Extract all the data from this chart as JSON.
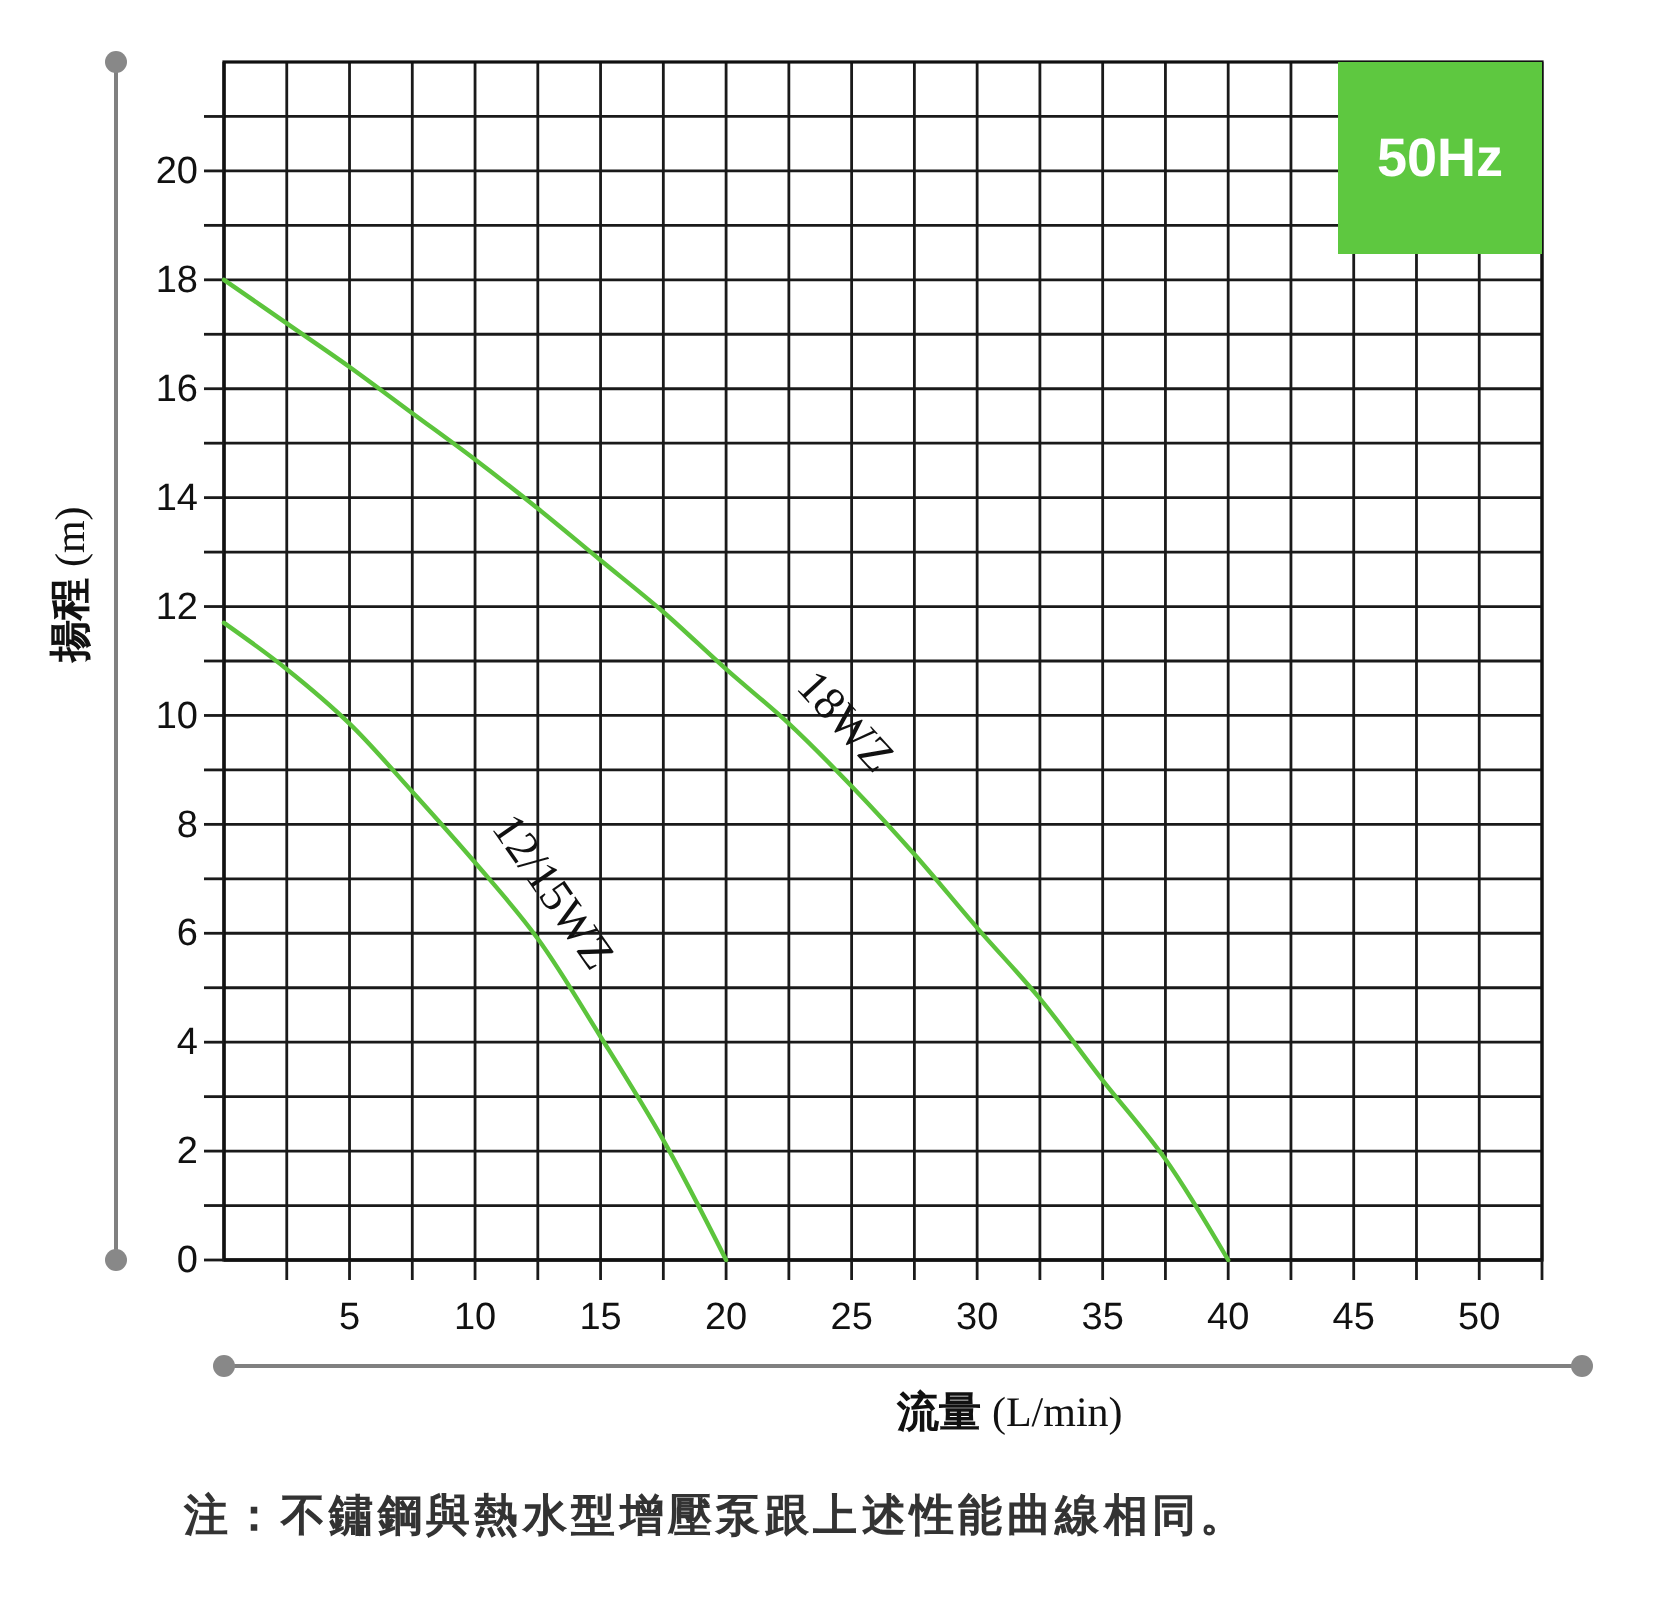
{
  "chart_data": {
    "type": "line",
    "xlabel": "流量 (L/min)",
    "ylabel": "揚程 (m)",
    "xlim": [
      0,
      52.5
    ],
    "ylim": [
      0,
      22
    ],
    "xticks": [
      {
        "value": 2.5,
        "label": null
      },
      5,
      {
        "value": 7.5,
        "label": null
      },
      10,
      {
        "value": 12.5,
        "label": null
      },
      15,
      {
        "value": 17.5,
        "label": null
      },
      20,
      {
        "value": 22.5,
        "label": null
      },
      25,
      {
        "value": 27.5,
        "label": null
      },
      30,
      {
        "value": 32.5,
        "label": null
      },
      35,
      {
        "value": 37.5,
        "label": null
      },
      40,
      {
        "value": 42.5,
        "label": null
      },
      45,
      {
        "value": 47.5,
        "label": null
      },
      50,
      {
        "value": 52.5,
        "label": null
      }
    ],
    "yticks": [
      0,
      {
        "value": 1,
        "label": null
      },
      2,
      {
        "value": 3,
        "label": null
      },
      4,
      {
        "value": 5,
        "label": null
      },
      6,
      {
        "value": 7,
        "label": null
      },
      8,
      {
        "value": 9,
        "label": null
      },
      10,
      {
        "value": 11,
        "label": null
      },
      12,
      {
        "value": 13,
        "label": null
      },
      14,
      {
        "value": 15,
        "label": null
      },
      16,
      {
        "value": 17,
        "label": null
      },
      18,
      {
        "value": 19,
        "label": null
      },
      20,
      {
        "value": 21,
        "label": null
      }
    ],
    "grid": true,
    "series": [
      {
        "name": "18WZ",
        "color": "#5cc43c",
        "x": [
          0,
          2.5,
          5,
          7.5,
          10,
          12.5,
          15,
          17.5,
          20,
          22.5,
          25,
          27.5,
          30,
          32.5,
          35,
          37.5,
          40
        ],
        "values": [
          18,
          17.2,
          16.4,
          15.55,
          14.7,
          13.8,
          12.85,
          11.9,
          10.85,
          9.85,
          8.7,
          7.45,
          6.1,
          4.8,
          3.3,
          1.85,
          0
        ]
      },
      {
        "name": "12/15WZ",
        "color": "#5cc43c",
        "x": [
          0,
          2.5,
          5,
          7.5,
          10,
          12.5,
          15,
          17.5,
          20
        ],
        "values": [
          11.7,
          10.85,
          9.85,
          8.6,
          7.3,
          5.9,
          4.1,
          2.2,
          0
        ]
      }
    ],
    "annotations": [
      "50Hz",
      "注：不鏽鋼與熱水型增壓泵跟上述性能曲線相同。"
    ]
  }
}
